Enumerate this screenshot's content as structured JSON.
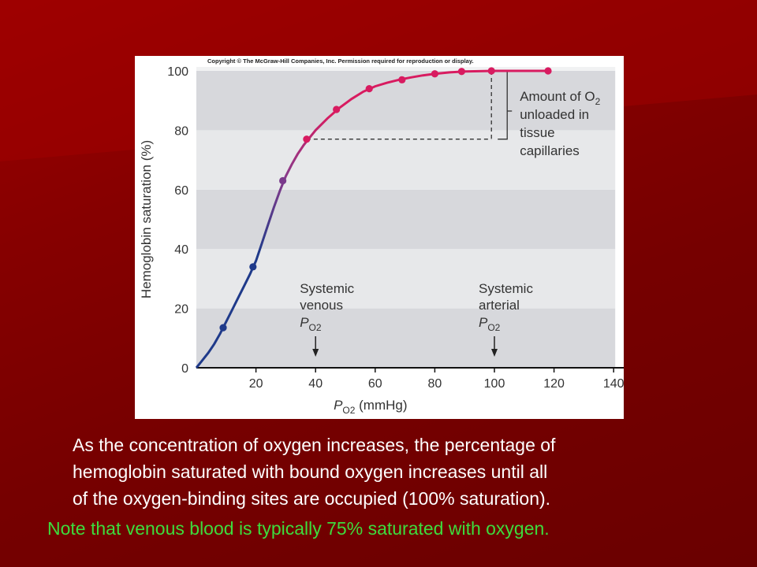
{
  "copyright": "Copyright © The McGraw-Hill Companies, Inc. Permission required for reproduction or display.",
  "caption": {
    "line1": "As the concentration of oxygen increases, the percentage of",
    "line2": "hemoglobin saturated with bound oxygen increases until all",
    "line3": "of the oxygen-binding sites are occupied (100% saturation)."
  },
  "note": "Note that venous blood is typically 75% saturated with oxygen.",
  "colors": {
    "background": "#860000",
    "curve_low": "#1f3a8a",
    "curve_high": "#d81b60",
    "note_text": "#3ddc3d"
  },
  "chart_data": {
    "type": "line",
    "title": "",
    "xlabel": {
      "prefix": "P",
      "subscript": "O2",
      "suffix": " (mmHg)"
    },
    "ylabel": "Hemoglobin saturation (%)",
    "xlim": [
      0,
      140
    ],
    "ylim": [
      0,
      100
    ],
    "x_ticks": [
      20,
      40,
      60,
      80,
      100,
      120,
      140
    ],
    "y_ticks": [
      0,
      20,
      40,
      60,
      80,
      100
    ],
    "grid": "horizontal bands",
    "points": [
      {
        "x": 9,
        "y": 13.5
      },
      {
        "x": 19,
        "y": 34
      },
      {
        "x": 29,
        "y": 63
      },
      {
        "x": 37,
        "y": 77
      },
      {
        "x": 47,
        "y": 87
      },
      {
        "x": 58,
        "y": 94
      },
      {
        "x": 69,
        "y": 97
      },
      {
        "x": 80,
        "y": 99
      },
      {
        "x": 89,
        "y": 99.8
      },
      {
        "x": 99,
        "y": 100
      },
      {
        "x": 118,
        "y": 100
      }
    ],
    "curve": [
      [
        0,
        0
      ],
      [
        2,
        2.5
      ],
      [
        4,
        5
      ],
      [
        6,
        8
      ],
      [
        8,
        11.5
      ],
      [
        10,
        15.5
      ],
      [
        12,
        19.5
      ],
      [
        14,
        23.5
      ],
      [
        16,
        27.5
      ],
      [
        18,
        31.5
      ],
      [
        20,
        36
      ],
      [
        22,
        42
      ],
      [
        24,
        48
      ],
      [
        26,
        54
      ],
      [
        28,
        59.5
      ],
      [
        30,
        64.5
      ],
      [
        32,
        68.5
      ],
      [
        34,
        72
      ],
      [
        36,
        75
      ],
      [
        38,
        77.5
      ],
      [
        40,
        80
      ],
      [
        44,
        84
      ],
      [
        48,
        87.5
      ],
      [
        52,
        90.5
      ],
      [
        56,
        93
      ],
      [
        60,
        94.8
      ],
      [
        64,
        96
      ],
      [
        68,
        97
      ],
      [
        72,
        97.8
      ],
      [
        76,
        98.5
      ],
      [
        80,
        99
      ],
      [
        85,
        99.5
      ],
      [
        90,
        99.8
      ],
      [
        95,
        99.9
      ],
      [
        100,
        100
      ],
      [
        110,
        100
      ],
      [
        118,
        100
      ]
    ],
    "annotations": {
      "venous": {
        "x": 40,
        "lines": [
          "Systemic",
          "venous"
        ],
        "symbol": "P",
        "subscript": "O2"
      },
      "arterial": {
        "x": 100,
        "lines": [
          "Systemic",
          "arterial"
        ],
        "symbol": "P",
        "subscript": "O2"
      },
      "unloaded": {
        "x_from": 37,
        "x_to": 99,
        "y_low": 77,
        "y_high": 100,
        "text": "Amount of O",
        "text_subscript": "2",
        "lines": [
          "unloaded in",
          "tissue",
          "capillaries"
        ]
      }
    }
  }
}
